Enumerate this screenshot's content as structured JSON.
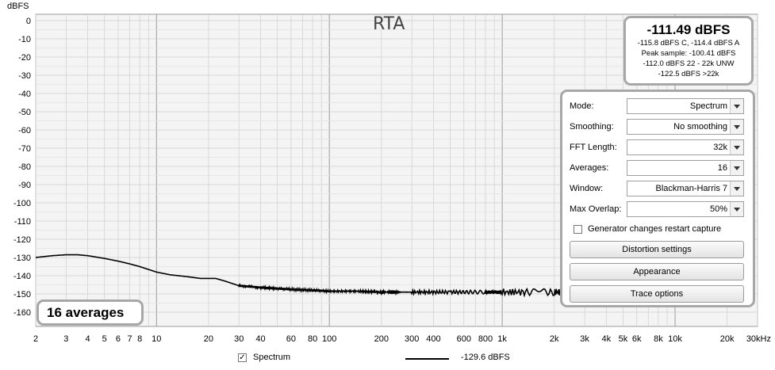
{
  "chart_data": {
    "type": "line",
    "title": "RTA",
    "ylabel": "dBFS",
    "xlabel": "",
    "xunit": "kHz",
    "x_scale": "log",
    "xlim": [
      2,
      30000
    ],
    "ylim": [
      -165,
      0
    ],
    "y_ticks": [
      0,
      -10,
      -20,
      -30,
      -40,
      -50,
      -60,
      -70,
      -80,
      -90,
      -100,
      -110,
      -120,
      -130,
      -140,
      -150,
      -160
    ],
    "x_ticks": [
      {
        "v": 2,
        "label": "2"
      },
      {
        "v": 3,
        "label": "3"
      },
      {
        "v": 4,
        "label": "4"
      },
      {
        "v": 5,
        "label": "5"
      },
      {
        "v": 6,
        "label": "6"
      },
      {
        "v": 7,
        "label": "7"
      },
      {
        "v": 8,
        "label": "8"
      },
      {
        "v": 10,
        "label": "10"
      },
      {
        "v": 20,
        "label": "20"
      },
      {
        "v": 30,
        "label": "30"
      },
      {
        "v": 40,
        "label": "40"
      },
      {
        "v": 60,
        "label": "60"
      },
      {
        "v": 80,
        "label": "80"
      },
      {
        "v": 100,
        "label": "100"
      },
      {
        "v": 200,
        "label": "200"
      },
      {
        "v": 300,
        "label": "300"
      },
      {
        "v": 400,
        "label": "400"
      },
      {
        "v": 600,
        "label": "600"
      },
      {
        "v": 800,
        "label": "800"
      },
      {
        "v": 1000,
        "label": "1k"
      },
      {
        "v": 2000,
        "label": "2k"
      },
      {
        "v": 3000,
        "label": "3k"
      },
      {
        "v": 4000,
        "label": "4k"
      },
      {
        "v": 5000,
        "label": "5k"
      },
      {
        "v": 6000,
        "label": "6k"
      },
      {
        "v": 8000,
        "label": "8k"
      },
      {
        "v": 10000,
        "label": "10k"
      },
      {
        "v": 20000,
        "label": "20k"
      },
      {
        "v": 30000,
        "label": "30kHz"
      }
    ],
    "grid": true,
    "series": [
      {
        "name": "Spectrum",
        "color": "#000000",
        "x": [
          2,
          2.5,
          3,
          3.5,
          4,
          5,
          6,
          7,
          8,
          10,
          12,
          15,
          18,
          20,
          22,
          25,
          30,
          35,
          40,
          50,
          60,
          80,
          100,
          150,
          200,
          300,
          500,
          800,
          1000,
          2000,
          3000
        ],
        "y": [
          -130,
          -129,
          -128.5,
          -128.5,
          -129,
          -130.5,
          -132,
          -133.5,
          -135,
          -138,
          -139.5,
          -140.5,
          -141.5,
          -141.5,
          -141.5,
          -143,
          -145.5,
          -146,
          -146.5,
          -147,
          -147.5,
          -148,
          -148.5,
          -148.5,
          -149,
          -149,
          -149,
          -149,
          -149,
          -149,
          -149
        ]
      }
    ]
  },
  "readout": {
    "main": "-111.49 dBFS",
    "line1": "-115.8 dBFS C, -114.4 dBFS A",
    "line2": "Peak sample: -100.41 dBFS",
    "line3": "-112.0 dBFS 22 - 22k UNW",
    "line4": "-122.5 dBFS >22k"
  },
  "averages_label": "16 averages",
  "panel": {
    "mode_label": "Mode:",
    "mode_value": "Spectrum",
    "smoothing_label": "Smoothing:",
    "smoothing_value": "No  smoothing",
    "fft_label": "FFT Length:",
    "fft_value": "32k",
    "averages_label": "Averages:",
    "averages_value": "16",
    "window_label": "Window:",
    "window_value": "Blackman-Harris 7",
    "overlap_label": "Max Overlap:",
    "overlap_value": "50%",
    "generator_label": "Generator changes restart capture",
    "generator_checked": false,
    "distortion_button": "Distortion settings",
    "appearance_button": "Appearance",
    "trace_button": "Trace options"
  },
  "legend": {
    "spectrum_label": "Spectrum",
    "spectrum_checked": true,
    "spectrum_value": "-129.6 dBFS"
  }
}
